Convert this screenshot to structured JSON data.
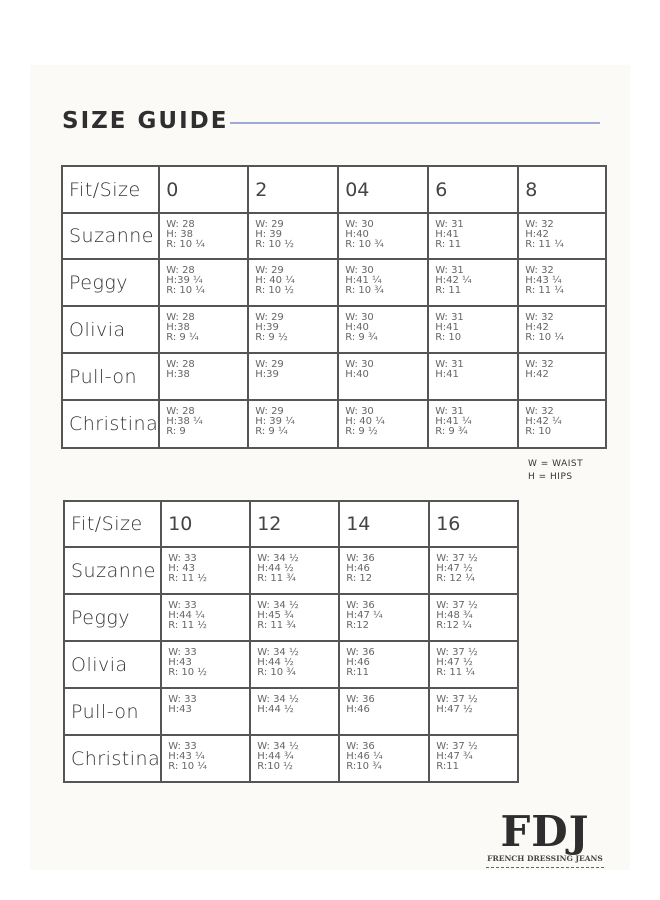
{
  "title": "SIZE GUIDE",
  "colors": {
    "rule": "#9ea9d6",
    "border": "#555555"
  },
  "tables": [
    {
      "header": [
        "Fit/Size",
        "0",
        "2",
        "04",
        "6",
        "8"
      ],
      "rows": [
        {
          "fit": "Suzanne",
          "cells": [
            [
              "W: 28",
              "H: 38",
              "R: 10 ¼"
            ],
            [
              "W: 29",
              "H: 39",
              "R: 10 ½"
            ],
            [
              "W: 30",
              "H:40",
              "R: 10 ¾"
            ],
            [
              "W: 31",
              "H:41",
              "R: 11"
            ],
            [
              "W: 32",
              "H:42",
              "R: 11 ¼"
            ]
          ]
        },
        {
          "fit": "Peggy",
          "cells": [
            [
              "W: 28",
              "H:39 ¼",
              "R: 10 ¼"
            ],
            [
              "W: 29",
              "H: 40 ¼",
              "R: 10 ½"
            ],
            [
              "W: 30",
              "H:41 ¼",
              "R: 10 ¾"
            ],
            [
              "W: 31",
              "H:42 ¼",
              "R: 11"
            ],
            [
              "W: 32",
              "H:43 ¼",
              "R: 11 ¼"
            ]
          ]
        },
        {
          "fit": "Olivia",
          "cells": [
            [
              "W: 28",
              "H:38",
              "R: 9 ¼"
            ],
            [
              "W: 29",
              "H:39",
              "R: 9 ½"
            ],
            [
              "W: 30",
              "H:40",
              "R: 9 ¾"
            ],
            [
              "W: 31",
              "H:41",
              "R: 10"
            ],
            [
              "W: 32",
              "H:42",
              "R: 10 ¼"
            ]
          ]
        },
        {
          "fit": "Pull-on",
          "cells": [
            [
              "W: 28",
              "H:38"
            ],
            [
              "W: 29",
              "H:39"
            ],
            [
              "W: 30",
              "H:40"
            ],
            [
              "W: 31",
              "H:41"
            ],
            [
              "W: 32",
              "H:42"
            ]
          ]
        },
        {
          "fit": "Christina",
          "cells": [
            [
              "W: 28",
              "H:38 ¼",
              "R: 9"
            ],
            [
              "W: 29",
              "H: 39 ¼",
              "R: 9 ¼"
            ],
            [
              "W: 30",
              "H: 40 ¼",
              "R: 9 ½"
            ],
            [
              "W: 31",
              "H:41 ¼",
              "R: 9 ¾"
            ],
            [
              "W: 32",
              "H:42 ¼",
              "R: 10"
            ]
          ]
        }
      ]
    },
    {
      "header": [
        "Fit/Size",
        "10",
        "12",
        "14",
        "16"
      ],
      "rows": [
        {
          "fit": "Suzanne",
          "cells": [
            [
              "W: 33",
              "H: 43",
              "R: 11 ½"
            ],
            [
              "W: 34 ½",
              "H:44 ½",
              "R: 11 ¾"
            ],
            [
              "W: 36",
              "H:46",
              "R: 12"
            ],
            [
              "W: 37 ½",
              "H:47 ½",
              "R: 12 ¼"
            ]
          ]
        },
        {
          "fit": "Peggy",
          "cells": [
            [
              "W: 33",
              "H:44 ¼",
              "R: 11 ½"
            ],
            [
              "W: 34 ½",
              "H:45 ¾",
              "R: 11 ¾"
            ],
            [
              "W: 36",
              "H:47 ¼",
              "R:12"
            ],
            [
              "W: 37 ½",
              "H:48 ¾",
              "R:12 ¼"
            ]
          ]
        },
        {
          "fit": "Olivia",
          "cells": [
            [
              "W: 33",
              "H:43",
              "R: 10 ½"
            ],
            [
              "W: 34 ½",
              "H:44 ½",
              "R: 10 ¾"
            ],
            [
              "W: 36",
              "H:46",
              "R:11"
            ],
            [
              "W: 37 ½",
              "H:47 ½",
              "R: 11 ¼"
            ]
          ]
        },
        {
          "fit": "Pull-on",
          "cells": [
            [
              "W: 33",
              "H:43"
            ],
            [
              "W: 34 ½",
              "H:44 ½"
            ],
            [
              "W: 36",
              "H:46"
            ],
            [
              "W: 37 ½",
              "H:47 ½"
            ]
          ]
        },
        {
          "fit": "Christina",
          "cells": [
            [
              "W: 33",
              "H:43 ¼",
              "R: 10 ¼"
            ],
            [
              "W: 34 ½",
              "H:44 ¾",
              "R:10 ½"
            ],
            [
              "W: 36",
              "H:46 ¼",
              "R:10 ¾"
            ],
            [
              "W: 37 ½",
              "H:47 ¾",
              "R:11"
            ]
          ]
        }
      ]
    }
  ],
  "legend": [
    "W = WAIST",
    "H = HIPS"
  ],
  "logo": {
    "mark": "FDJ",
    "text": "FRENCH DRESSING JEANS"
  }
}
